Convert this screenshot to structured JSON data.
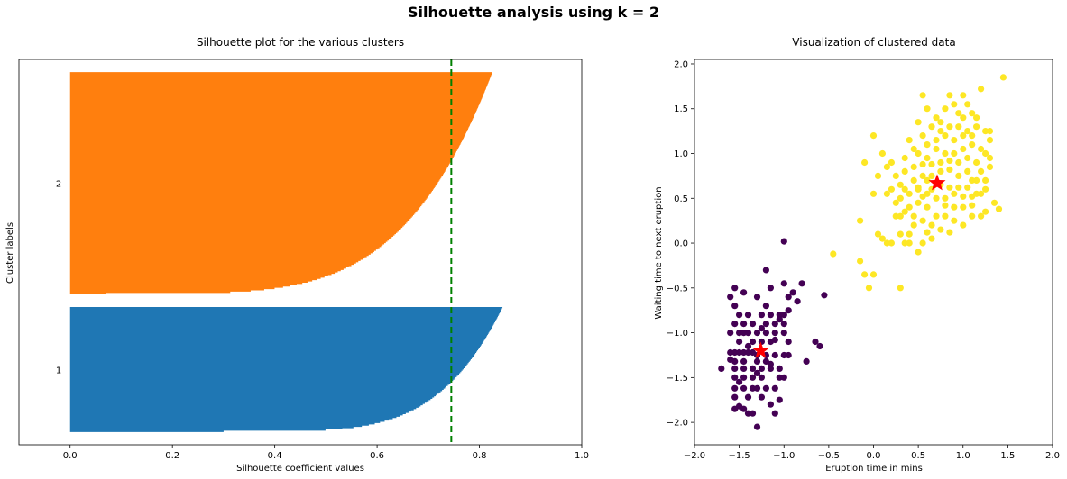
{
  "suptitle": "Silhouette analysis using k = 2",
  "chart_data": [
    {
      "type": "bar",
      "subtype": "silhouette",
      "title": "Silhouette plot for the various clusters",
      "xlabel": "Silhouette coefficient values",
      "ylabel": "Cluster labels",
      "xlim": [
        -0.1,
        1.0
      ],
      "xticks": [
        0.0,
        0.2,
        0.4,
        0.6,
        0.8,
        1.0
      ],
      "xtick_labels": [
        "0.0",
        "0.2",
        "0.4",
        "0.6",
        "0.8",
        "1.0"
      ],
      "ytick_labels": [
        "1",
        "2"
      ],
      "average_line": {
        "value": 0.745,
        "color": "#008000",
        "style": "dashed"
      },
      "clusters": [
        {
          "label": "1",
          "color": "#1f77b4",
          "min": 0.3,
          "max": 0.845,
          "size": 98
        },
        {
          "label": "2",
          "color": "#ff7f0e",
          "min": 0.07,
          "max": 0.825,
          "size": 174
        }
      ]
    },
    {
      "type": "scatter",
      "title": "Visualization of clustered data",
      "xlabel": "Eruption time in mins",
      "ylabel": "Waiting time to next eruption",
      "xlim": [
        -2.0,
        2.0
      ],
      "ylim": [
        -2.25,
        2.05
      ],
      "xticks": [
        -2.0,
        -1.5,
        -1.0,
        -0.5,
        0.0,
        0.5,
        1.0,
        1.5,
        2.0
      ],
      "xtick_labels": [
        "−2.0",
        "−1.5",
        "−1.0",
        "−0.5",
        "0.0",
        "0.5",
        "1.0",
        "1.5",
        "2.0"
      ],
      "yticks": [
        -2.0,
        -1.5,
        -1.0,
        -0.5,
        0.0,
        0.5,
        1.0,
        1.5,
        2.0
      ],
      "ytick_labels": [
        "−2.0",
        "−1.5",
        "−1.0",
        "−0.5",
        "0.0",
        "0.5",
        "1.0",
        "1.5",
        "2.0"
      ],
      "series": [
        {
          "color": "#440154",
          "points": [
            [
              -1.55,
              -0.5
            ],
            [
              -1.45,
              -0.55
            ],
            [
              -1.2,
              -0.3
            ],
            [
              -1.0,
              0.02
            ],
            [
              -1.0,
              -0.45
            ],
            [
              -0.8,
              -0.45
            ],
            [
              -0.9,
              -0.55
            ],
            [
              -0.95,
              -0.6
            ],
            [
              -0.85,
              -0.65
            ],
            [
              -0.55,
              -0.58
            ],
            [
              -1.15,
              -0.5
            ],
            [
              -1.3,
              -0.6
            ],
            [
              -1.55,
              -0.7
            ],
            [
              -1.5,
              -0.8
            ],
            [
              -1.4,
              -0.8
            ],
            [
              -1.25,
              -0.8
            ],
            [
              -1.15,
              -0.8
            ],
            [
              -1.05,
              -0.8
            ],
            [
              -1.0,
              -0.8
            ],
            [
              -1.55,
              -0.9
            ],
            [
              -1.45,
              -0.9
            ],
            [
              -1.35,
              -0.9
            ],
            [
              -1.2,
              -0.9
            ],
            [
              -1.1,
              -0.9
            ],
            [
              -1.05,
              -0.85
            ],
            [
              -1.6,
              -1.0
            ],
            [
              -1.5,
              -1.0
            ],
            [
              -1.4,
              -1.0
            ],
            [
              -1.3,
              -1.0
            ],
            [
              -1.2,
              -1.0
            ],
            [
              -1.1,
              -1.0
            ],
            [
              -1.0,
              -1.0
            ],
            [
              -1.5,
              -1.1
            ],
            [
              -1.35,
              -1.1
            ],
            [
              -1.25,
              -1.1
            ],
            [
              -1.15,
              -1.1
            ],
            [
              -0.95,
              -1.1
            ],
            [
              -1.6,
              -1.22
            ],
            [
              -1.55,
              -1.22
            ],
            [
              -1.5,
              -1.22
            ],
            [
              -1.45,
              -1.22
            ],
            [
              -1.4,
              -1.22
            ],
            [
              -1.35,
              -1.22
            ],
            [
              -1.3,
              -1.25
            ],
            [
              -1.2,
              -1.25
            ],
            [
              -1.1,
              -1.25
            ],
            [
              -1.0,
              -1.25
            ],
            [
              -1.55,
              -1.32
            ],
            [
              -1.45,
              -1.32
            ],
            [
              -1.3,
              -1.32
            ],
            [
              -1.2,
              -1.32
            ],
            [
              -1.7,
              -1.4
            ],
            [
              -1.55,
              -1.4
            ],
            [
              -1.45,
              -1.4
            ],
            [
              -1.35,
              -1.4
            ],
            [
              -1.25,
              -1.4
            ],
            [
              -1.15,
              -1.4
            ],
            [
              -1.05,
              -1.4
            ],
            [
              -1.55,
              -1.5
            ],
            [
              -1.45,
              -1.5
            ],
            [
              -1.35,
              -1.5
            ],
            [
              -1.25,
              -1.5
            ],
            [
              -1.05,
              -1.5
            ],
            [
              -1.55,
              -1.62
            ],
            [
              -1.45,
              -1.62
            ],
            [
              -1.35,
              -1.62
            ],
            [
              -1.3,
              -1.62
            ],
            [
              -1.2,
              -1.62
            ],
            [
              -1.1,
              -1.62
            ],
            [
              -1.55,
              -1.72
            ],
            [
              -1.4,
              -1.72
            ],
            [
              -1.25,
              -1.72
            ],
            [
              -1.5,
              -1.82
            ],
            [
              -1.45,
              -1.85
            ],
            [
              -1.55,
              -1.85
            ],
            [
              -1.15,
              -1.8
            ],
            [
              -1.05,
              -1.75
            ],
            [
              -1.4,
              -1.9
            ],
            [
              -1.35,
              -1.9
            ],
            [
              -1.1,
              -1.9
            ],
            [
              -1.3,
              -2.05
            ],
            [
              -1.0,
              -1.5
            ],
            [
              -0.65,
              -1.1
            ],
            [
              -0.6,
              -1.15
            ],
            [
              -0.75,
              -1.32
            ],
            [
              -0.95,
              -1.25
            ],
            [
              -1.1,
              -1.08
            ],
            [
              -1.2,
              -0.7
            ],
            [
              -1.6,
              -0.6
            ],
            [
              -1.0,
              -0.9
            ],
            [
              -0.95,
              -0.75
            ],
            [
              -1.45,
              -1.0
            ],
            [
              -1.6,
              -1.3
            ],
            [
              -1.5,
              -1.55
            ],
            [
              -1.4,
              -1.15
            ],
            [
              -1.3,
              -1.45
            ],
            [
              -1.15,
              -1.35
            ],
            [
              -1.25,
              -0.95
            ]
          ]
        },
        {
          "color": "#fde725",
          "points": [
            [
              -0.45,
              -0.12
            ],
            [
              -0.15,
              -0.2
            ],
            [
              -0.1,
              -0.35
            ],
            [
              0.0,
              -0.35
            ],
            [
              -0.05,
              -0.5
            ],
            [
              0.3,
              -0.5
            ],
            [
              -0.15,
              0.25
            ],
            [
              0.1,
              0.05
            ],
            [
              0.05,
              0.1
            ],
            [
              0.15,
              0.0
            ],
            [
              0.2,
              0.0
            ],
            [
              0.35,
              0.0
            ],
            [
              0.4,
              0.0
            ],
            [
              0.55,
              0.0
            ],
            [
              0.5,
              -0.1
            ],
            [
              0.6,
              0.12
            ],
            [
              0.45,
              0.2
            ],
            [
              0.25,
              0.3
            ],
            [
              0.3,
              0.3
            ],
            [
              0.35,
              0.35
            ],
            [
              0.45,
              0.3
            ],
            [
              0.55,
              0.25
            ],
            [
              0.65,
              0.2
            ],
            [
              0.75,
              0.15
            ],
            [
              0.85,
              0.12
            ],
            [
              0.7,
              0.3
            ],
            [
              0.8,
              0.3
            ],
            [
              0.9,
              0.25
            ],
            [
              1.0,
              0.2
            ],
            [
              1.1,
              0.3
            ],
            [
              1.2,
              0.3
            ],
            [
              1.25,
              0.35
            ],
            [
              1.35,
              0.45
            ],
            [
              1.4,
              0.38
            ],
            [
              0.3,
              0.5
            ],
            [
              0.4,
              0.55
            ],
            [
              0.5,
              0.6
            ],
            [
              0.6,
              0.55
            ],
            [
              0.7,
              0.5
            ],
            [
              0.8,
              0.5
            ],
            [
              0.9,
              0.55
            ],
            [
              1.0,
              0.52
            ],
            [
              1.1,
              0.52
            ],
            [
              1.2,
              0.55
            ],
            [
              1.25,
              0.6
            ],
            [
              0.3,
              0.65
            ],
            [
              0.45,
              0.7
            ],
            [
              0.55,
              0.75
            ],
            [
              0.65,
              0.75
            ],
            [
              0.75,
              0.8
            ],
            [
              0.85,
              0.82
            ],
            [
              0.95,
              0.75
            ],
            [
              1.05,
              0.8
            ],
            [
              1.15,
              0.7
            ],
            [
              1.2,
              0.8
            ],
            [
              0.25,
              0.75
            ],
            [
              0.2,
              0.9
            ],
            [
              0.35,
              0.95
            ],
            [
              0.5,
              1.0
            ],
            [
              0.6,
              0.95
            ],
            [
              0.7,
              1.05
            ],
            [
              0.8,
              1.0
            ],
            [
              0.9,
              1.0
            ],
            [
              1.0,
              1.05
            ],
            [
              1.1,
              1.1
            ],
            [
              1.2,
              1.05
            ],
            [
              1.3,
              0.95
            ],
            [
              0.4,
              1.15
            ],
            [
              0.55,
              1.2
            ],
            [
              0.65,
              1.3
            ],
            [
              0.75,
              1.25
            ],
            [
              0.85,
              1.3
            ],
            [
              0.95,
              1.3
            ],
            [
              1.05,
              1.25
            ],
            [
              1.15,
              1.3
            ],
            [
              1.25,
              1.25
            ],
            [
              1.3,
              1.15
            ],
            [
              0.5,
              1.35
            ],
            [
              0.7,
              1.4
            ],
            [
              0.8,
              1.5
            ],
            [
              0.9,
              1.55
            ],
            [
              1.0,
              1.4
            ],
            [
              1.1,
              1.45
            ],
            [
              0.55,
              1.65
            ],
            [
              1.0,
              1.65
            ],
            [
              1.2,
              1.72
            ],
            [
              1.45,
              1.85
            ],
            [
              -0.1,
              0.9
            ],
            [
              0.0,
              1.2
            ],
            [
              0.1,
              1.0
            ],
            [
              0.15,
              0.85
            ],
            [
              0.05,
              0.75
            ],
            [
              0.0,
              0.55
            ],
            [
              0.2,
              0.6
            ],
            [
              0.25,
              0.45
            ],
            [
              0.15,
              0.55
            ],
            [
              0.4,
              0.4
            ],
            [
              0.6,
              0.4
            ],
            [
              0.8,
              0.42
            ],
            [
              1.0,
              0.4
            ],
            [
              0.65,
              0.6
            ],
            [
              0.75,
              0.65
            ],
            [
              0.85,
              0.62
            ],
            [
              0.95,
              0.62
            ],
            [
              1.05,
              0.62
            ],
            [
              1.15,
              0.55
            ],
            [
              0.35,
              0.8
            ],
            [
              0.45,
              0.85
            ],
            [
              0.55,
              0.88
            ],
            [
              0.65,
              0.88
            ],
            [
              0.75,
              0.9
            ],
            [
              0.85,
              0.92
            ],
            [
              0.95,
              0.9
            ],
            [
              1.05,
              0.95
            ],
            [
              1.15,
              0.9
            ],
            [
              1.25,
              1.0
            ],
            [
              0.45,
              1.05
            ],
            [
              0.6,
              1.1
            ],
            [
              0.7,
              1.15
            ],
            [
              0.8,
              1.2
            ],
            [
              0.9,
              1.15
            ],
            [
              1.0,
              1.2
            ],
            [
              1.1,
              1.2
            ],
            [
              0.75,
              1.35
            ],
            [
              0.95,
              1.45
            ],
            [
              1.05,
              1.55
            ],
            [
              1.15,
              1.4
            ],
            [
              1.3,
              1.25
            ],
            [
              0.6,
              1.5
            ],
            [
              0.85,
              1.65
            ],
            [
              0.4,
              0.1
            ],
            [
              0.65,
              0.05
            ],
            [
              0.3,
              0.1
            ],
            [
              0.5,
              0.45
            ],
            [
              0.9,
              0.4
            ],
            [
              1.1,
              0.42
            ],
            [
              0.6,
              0.7
            ],
            [
              1.1,
              0.7
            ],
            [
              0.5,
              0.62
            ],
            [
              0.55,
              0.52
            ],
            [
              0.35,
              0.6
            ],
            [
              1.25,
              0.7
            ],
            [
              1.3,
              0.85
            ]
          ]
        }
      ],
      "centers": [
        {
          "x": -1.26,
          "y": -1.2,
          "color": "#ff0000"
        },
        {
          "x": 0.71,
          "y": 0.67,
          "color": "#ff0000"
        }
      ]
    }
  ]
}
